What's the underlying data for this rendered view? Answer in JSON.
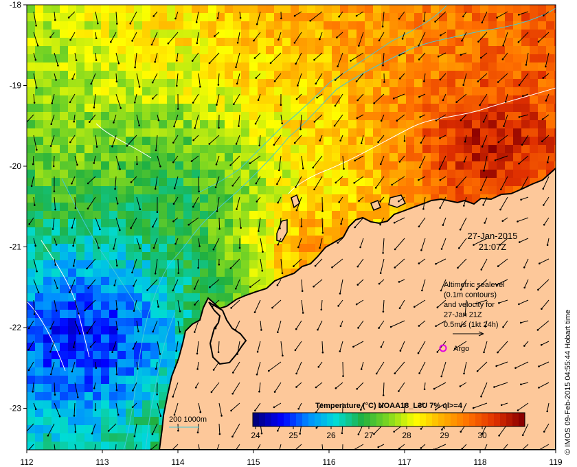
{
  "axes": {
    "x_ticks": [
      "112",
      "113",
      "114",
      "115",
      "116",
      "117",
      "118",
      "119"
    ],
    "y_ticks": [
      "-18",
      "-19",
      "-20",
      "-21",
      "-22",
      "-23"
    ]
  },
  "timestamp": {
    "date": "27-Jan-2015",
    "time": "21:07Z"
  },
  "legend": {
    "lines": [
      "Altimetric sealevel",
      "(0.1m contours)",
      "and velocity for",
      "27-Jan 21Z",
      "0.5m/s (1kt 24h)"
    ],
    "argo_label": "Argo",
    "isobath_label": "200  1000m"
  },
  "colorbar": {
    "title": "Temperature (°C) NOAA18_L3U 7% ql>=4",
    "ticks": [
      "24",
      "25",
      "26",
      "27",
      "28",
      "29",
      "30"
    ]
  },
  "credit": "© IMOS 09-Feb-2015 04:55:44 Hobart time",
  "colors": {
    "land": "#fdc89a",
    "coast": "#000000",
    "contour": "#ffffff",
    "isobath": "#44c8d8",
    "argo": "#e000e0",
    "vector": "#000000"
  },
  "color_scale": [
    "#00007f",
    "#0000ff",
    "#0090ff",
    "#00dcd8",
    "#20b040",
    "#80d820",
    "#ffff00",
    "#ffb000",
    "#ff7000",
    "#e03000",
    "#8b0000"
  ]
}
